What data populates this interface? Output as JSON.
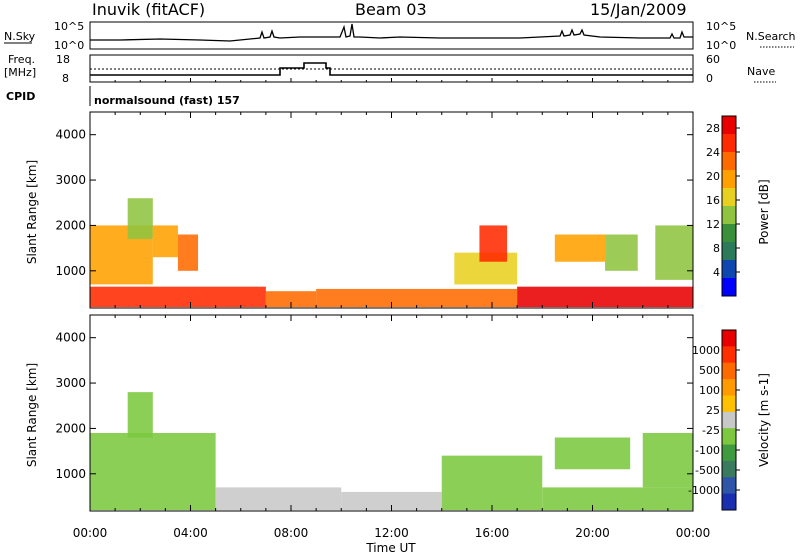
{
  "header": {
    "station": "Inuvik (fitACF)",
    "beam": "Beam 03",
    "date": "15/Jan/2009"
  },
  "param_panels": {
    "nsky": {
      "label": "N.Sky",
      "ticks": [
        "10^5",
        "10^0"
      ]
    },
    "nsearch": {
      "label": "N.Search",
      "ticks": [
        "10^5",
        "10^0"
      ]
    },
    "freq": {
      "label_line1": "Freq.",
      "label_line2": "[MHz]",
      "ticks": [
        "18",
        "8"
      ]
    },
    "nave": {
      "label": "Nave",
      "ticks": [
        "60",
        "0"
      ]
    },
    "cpid": {
      "label": "CPID",
      "value": "normalsound (fast) 157"
    }
  },
  "chart_data": [
    {
      "type": "heatmap",
      "name": "power",
      "xlabel": "",
      "ylabel": "Slant Range [km]",
      "x_ticks": [
        "00:00",
        "04:00",
        "08:00",
        "12:00",
        "16:00",
        "20:00",
        "00:00"
      ],
      "x_range_hours": [
        0,
        24
      ],
      "y_ticks": [
        "1000",
        "2000",
        "3000",
        "4000"
      ],
      "ylim_km": [
        180,
        4500
      ],
      "colorbar": {
        "label": "Power [dB]",
        "ticks": [
          "4",
          "8",
          "12",
          "16",
          "20",
          "24",
          "28"
        ],
        "range": [
          0,
          30
        ],
        "colors": [
          "#0000ff",
          "#0f47b0",
          "#2b7a5a",
          "#3a8f3a",
          "#8fc440",
          "#e8d020",
          "#ffa000",
          "#ff6a00",
          "#ff2a00",
          "#e80000"
        ]
      },
      "regions": [
        {
          "t0": 0.0,
          "t1": 7.0,
          "r0": 200,
          "r1": 650,
          "value": 26
        },
        {
          "t0": 7.0,
          "t1": 9.0,
          "r0": 200,
          "r1": 550,
          "value": 22
        },
        {
          "t0": 9.0,
          "t1": 17.0,
          "r0": 200,
          "r1": 600,
          "value": 21
        },
        {
          "t0": 17.0,
          "t1": 24.0,
          "r0": 200,
          "r1": 650,
          "value": 27
        },
        {
          "t0": 0.0,
          "t1": 2.5,
          "r0": 700,
          "r1": 2000,
          "value": 18
        },
        {
          "t0": 1.5,
          "t1": 2.5,
          "r0": 1700,
          "r1": 2600,
          "value": 14
        },
        {
          "t0": 2.5,
          "t1": 3.5,
          "r0": 1300,
          "r1": 2000,
          "value": 20
        },
        {
          "t0": 3.5,
          "t1": 4.3,
          "r0": 1000,
          "r1": 1800,
          "value": 22
        },
        {
          "t0": 14.5,
          "t1": 17.0,
          "r0": 700,
          "r1": 1400,
          "value": 16
        },
        {
          "t0": 15.5,
          "t1": 16.6,
          "r0": 1200,
          "r1": 2000,
          "value": 25
        },
        {
          "t0": 18.5,
          "t1": 20.5,
          "r0": 1200,
          "r1": 1800,
          "value": 20
        },
        {
          "t0": 20.5,
          "t1": 21.8,
          "r0": 1000,
          "r1": 1800,
          "value": 14
        },
        {
          "t0": 22.5,
          "t1": 24.0,
          "r0": 800,
          "r1": 2000,
          "value": 12
        }
      ]
    },
    {
      "type": "heatmap",
      "name": "velocity",
      "xlabel": "Time UT",
      "ylabel": "Slant Range [km]",
      "x_ticks": [
        "00:00",
        "04:00",
        "08:00",
        "12:00",
        "16:00",
        "20:00",
        "00:00"
      ],
      "x_range_hours": [
        0,
        24
      ],
      "y_ticks": [
        "1000",
        "2000",
        "3000",
        "4000"
      ],
      "ylim_km": [
        180,
        4500
      ],
      "colorbar": {
        "label": "Velocity [m s-1]",
        "ticks": [
          "1000",
          "500",
          "100",
          "25",
          "-25",
          "-100",
          "-500",
          "-1000"
        ],
        "range": [
          -1200,
          1200
        ],
        "colors": [
          "#1a2fb0",
          "#2e55a8",
          "#3a7a5e",
          "#3f9a40",
          "#7cc840",
          "#c8c8c8",
          "#ffc000",
          "#ff9a00",
          "#ff6a00",
          "#ff3000",
          "#e80000"
        ]
      },
      "regions": [
        {
          "t0": 0.0,
          "t1": 5.0,
          "r0": 200,
          "r1": 1900,
          "value": -150
        },
        {
          "t0": 1.5,
          "t1": 2.5,
          "r0": 1800,
          "r1": 2800,
          "value": -120
        },
        {
          "t0": 5.0,
          "t1": 10.0,
          "r0": 200,
          "r1": 700,
          "value": 80
        },
        {
          "t0": 10.0,
          "t1": 14.0,
          "r0": 200,
          "r1": 600,
          "value": 40
        },
        {
          "t0": 14.0,
          "t1": 18.0,
          "r0": 200,
          "r1": 1400,
          "value": -130
        },
        {
          "t0": 18.0,
          "t1": 24.0,
          "r0": 200,
          "r1": 700,
          "value": -200
        },
        {
          "t0": 18.5,
          "t1": 21.5,
          "r0": 1100,
          "r1": 1800,
          "value": -300
        },
        {
          "t0": 22.0,
          "t1": 24.0,
          "r0": 700,
          "r1": 1900,
          "value": -250
        }
      ]
    }
  ]
}
